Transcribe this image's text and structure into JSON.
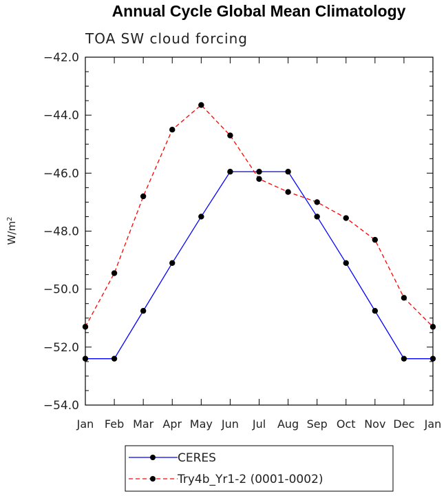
{
  "chart_data": {
    "type": "line",
    "title": "Annual Cycle Global Mean Climatology",
    "subtitle": "TOA SW cloud forcing",
    "ylabel_main": "W/m",
    "ylabel_sup": "2",
    "xlabel": "",
    "categories": [
      "Jan",
      "Feb",
      "Mar",
      "Apr",
      "May",
      "Jun",
      "Jul",
      "Aug",
      "Sep",
      "Oct",
      "Nov",
      "Dec",
      "Jan"
    ],
    "ylim": [
      -54.0,
      -42.0
    ],
    "yticks": [
      "-42.0",
      "-44.0",
      "-46.0",
      "-48.0",
      "-50.0",
      "-52.0",
      "-54.0"
    ],
    "series": [
      {
        "name": "CERES",
        "color": "#0000ff",
        "dashed": false,
        "values": [
          -52.4,
          -52.4,
          -50.75,
          -49.1,
          -47.5,
          -45.95,
          -45.95,
          -45.95,
          -47.5,
          -49.1,
          -50.75,
          -52.4,
          -52.4
        ]
      },
      {
        "name": "Try4b_Yr1-2 (0001-0002)",
        "color": "#ff0000",
        "dashed": true,
        "values": [
          -51.3,
          -49.45,
          -46.8,
          -44.5,
          -43.65,
          -44.7,
          -46.2,
          -46.65,
          -47.0,
          -47.55,
          -48.3,
          -50.3,
          -51.3
        ]
      }
    ]
  }
}
